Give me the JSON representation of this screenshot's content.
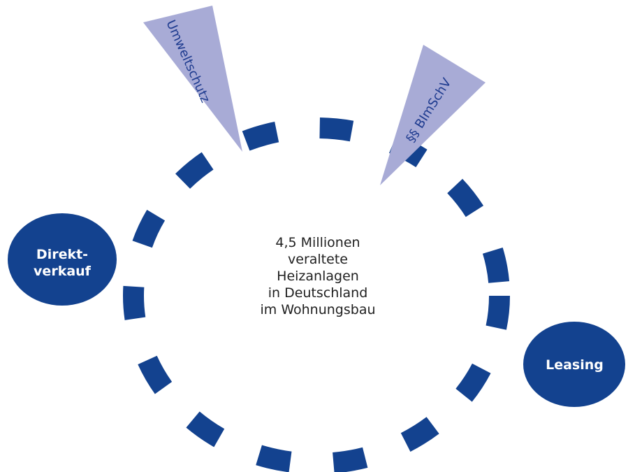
{
  "center": {
    "lines": [
      "4,5 Millionen",
      "veraltete",
      "Heizanlagen",
      "in Deutschland",
      "im Wohnungsbau"
    ]
  },
  "nodes": {
    "direktverkauf": {
      "lines": [
        "Direkt-",
        "verkauf"
      ]
    },
    "leasing": {
      "lines": [
        "Leasing"
      ]
    }
  },
  "wedges": {
    "umweltschutz": "Umweltschutz",
    "bimschv": "§§ BImSchV"
  },
  "colors": {
    "primary": "#13428f",
    "wedge": "#a8abd6",
    "wedge_text": "#1e3b8f",
    "center_text": "#1f1f1f"
  }
}
